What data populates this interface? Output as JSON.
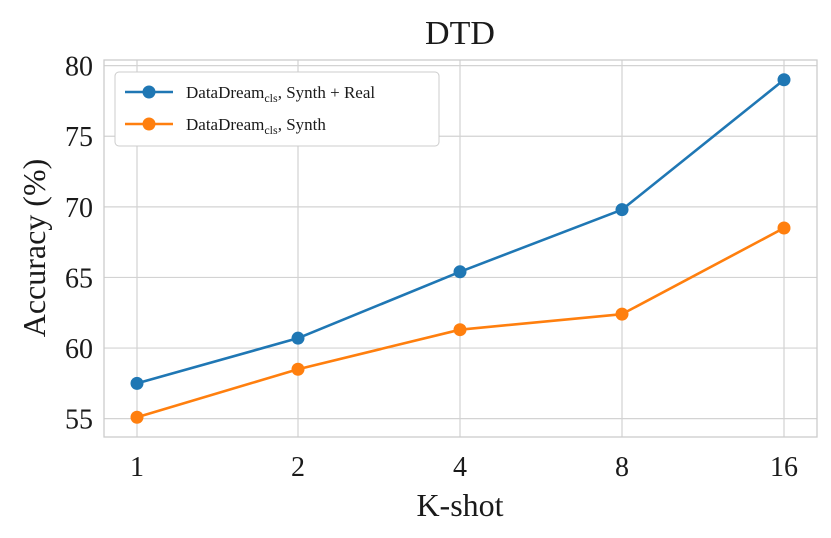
{
  "chart_data": {
    "type": "line",
    "title": "DTD",
    "xlabel": "K-shot",
    "ylabel": "Accuracy (%)",
    "categories": [
      "1",
      "2",
      "4",
      "8",
      "16"
    ],
    "ylim": [
      53.7,
      80.4
    ],
    "yticks": [
      55,
      60,
      65,
      70,
      75,
      80
    ],
    "grid": true,
    "legend_position": "top-left",
    "series": [
      {
        "name_main": "DataDream",
        "name_sub": "cls",
        "name_rest": ", Synth + Real",
        "color": "#1f77b4",
        "values": [
          57.5,
          60.7,
          65.4,
          69.8,
          79.0
        ]
      },
      {
        "name_main": "DataDream",
        "name_sub": "cls",
        "name_rest": ", Synth",
        "color": "#ff7f0e",
        "values": [
          55.1,
          58.5,
          61.3,
          62.4,
          68.5
        ]
      }
    ]
  }
}
